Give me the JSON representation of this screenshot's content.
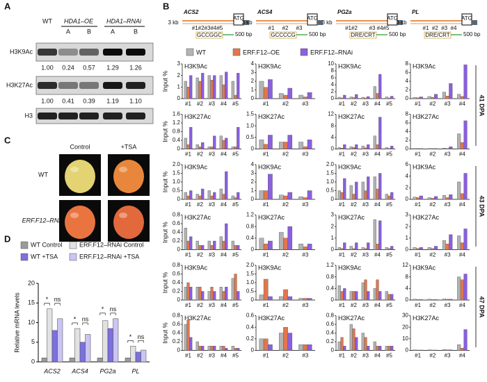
{
  "panel_labels": [
    "A",
    "B",
    "C",
    "D"
  ],
  "panel_a": {
    "columns": [
      "WT",
      "HDA1–OE",
      "HDA1–RNAi"
    ],
    "subcolumns": [
      "A",
      "B",
      "A",
      "B"
    ],
    "rows": [
      {
        "label": "H3K9Ac",
        "values": [
          "1.00",
          "0.24",
          "0.57",
          "1.29",
          "1.26"
        ]
      },
      {
        "label": "H3K27Ac",
        "values": [
          "1.00",
          "0.41",
          "0.39",
          "1.19",
          "1.10"
        ]
      },
      {
        "label": "H3"
      }
    ]
  },
  "panel_c": {
    "columns": [
      "Control",
      "+TSA"
    ],
    "rows": [
      "WT",
      "ERF.F12–RNAi"
    ]
  },
  "panel_b": {
    "genes": [
      {
        "name": "ACS2",
        "scale": "3 kb",
        "start": "ATG",
        "sites": [
          "#1#2#3#4#5"
        ],
        "motif": "GCCGGC",
        "bar": "500 bp"
      },
      {
        "name": "ACS4",
        "scale": "3 kb",
        "start": "ATG",
        "sites": [
          "#1",
          "#2",
          "#3"
        ],
        "motif": "GCCCCG",
        "bar": "500 bp"
      },
      {
        "name": "PG2a",
        "scale": "3 kb",
        "start": "ATG",
        "sites": [
          "#1#2",
          "#3 #4#5"
        ],
        "motif": "DRE/CRT",
        "bar": "500 bp"
      },
      {
        "name": "PL",
        "scale": "3 kb",
        "start": "ATG",
        "sites": [
          "#1",
          "#2",
          "#3",
          "#4"
        ],
        "motif": "DRE/CRT",
        "bar": "500 bp"
      }
    ],
    "legend": [
      {
        "name": "WT",
        "color": "#b3b3b3"
      },
      {
        "name": "ERF.F12–OE",
        "color": "#e3764a"
      },
      {
        "name": "ERF.F12–RNAi",
        "color": "#8a5fe0"
      }
    ],
    "y_label": "Input %",
    "stages": [
      "41 DPA",
      "43 DPA",
      "47 DPA"
    ]
  },
  "chart_data": [
    {
      "type": "grouped-bar",
      "y_label": "Relative mRNA levels",
      "categories": [
        "ACS2",
        "ACS4",
        "PG2a",
        "PL"
      ],
      "series": [
        {
          "name": "WT Control",
          "color": "#9a9a9a",
          "values": [
            1,
            1,
            1,
            1
          ]
        },
        {
          "name": "ERF.F12–RNAi Control",
          "color": "#e2e2e2",
          "values": [
            13.5,
            8.5,
            10.5,
            4
          ]
        },
        {
          "name": "WT +TSA",
          "color": "#7c70e0",
          "values": [
            8,
            5,
            8.5,
            2.5
          ]
        },
        {
          "name": "ERF.F12–RNAi +TSA",
          "color": "#cbc5f3",
          "values": [
            11,
            7,
            11,
            3
          ]
        }
      ],
      "annotations": [
        "*",
        "ns",
        "*",
        "ns",
        "*",
        "ns",
        "*",
        "ns"
      ],
      "ylim": [
        0,
        20
      ],
      "yticks": [
        0,
        5,
        10,
        15,
        20
      ]
    },
    {
      "type": "bar",
      "title": "H3K9Ac",
      "categories": [
        "#1",
        "#2",
        "#3",
        "#4",
        "#5"
      ],
      "ylim": [
        0,
        3
      ],
      "yticks": [
        0,
        1,
        2,
        3
      ],
      "series": [
        {
          "values": [
            1.5,
            1.8,
            2.0,
            2.0,
            1.5
          ]
        },
        {
          "values": [
            1.0,
            1.5,
            1.6,
            1.2,
            0.3
          ]
        },
        {
          "values": [
            2.0,
            2.2,
            2.0,
            2.3,
            2.2
          ]
        }
      ]
    },
    {
      "type": "bar",
      "title": "H3K9Ac",
      "categories": [
        "#1",
        "#2",
        "#3"
      ],
      "ylim": [
        0,
        4
      ],
      "yticks": [
        0,
        1,
        2,
        3,
        4
      ],
      "series": [
        {
          "values": [
            2.0,
            0.6,
            0.4
          ]
        },
        {
          "values": [
            1.3,
            0.4,
            0.2
          ]
        },
        {
          "values": [
            2.2,
            1.2,
            0.7
          ]
        }
      ]
    },
    {
      "type": "bar",
      "title": "H3K9Ac",
      "categories": [
        "#1",
        "#2",
        "#3",
        "#4",
        "#5"
      ],
      "ylim": [
        0,
        10
      ],
      "yticks": [
        0,
        2,
        4,
        6,
        8,
        10
      ],
      "series": [
        {
          "values": [
            0.4,
            0.5,
            0.4,
            3.5,
            0.5
          ]
        },
        {
          "values": [
            0.2,
            0.3,
            0.2,
            1.5,
            0.2
          ]
        },
        {
          "values": [
            1.0,
            1.2,
            0.6,
            7.0,
            0.7
          ]
        }
      ]
    },
    {
      "type": "bar",
      "title": "H3K9Ac",
      "categories": [
        "#1",
        "#2",
        "#3",
        "#4"
      ],
      "ylim": [
        0,
        8
      ],
      "yticks": [
        0,
        2,
        4,
        6,
        8
      ],
      "series": [
        {
          "values": [
            0.3,
            0.5,
            1.5,
            1.0
          ]
        },
        {
          "values": [
            0.2,
            0.3,
            0.6,
            0.5
          ]
        },
        {
          "values": [
            0.4,
            1.0,
            3.5,
            7.8
          ]
        }
      ]
    },
    {
      "type": "bar",
      "title": "H3K27Ac",
      "categories": [
        "#1",
        "#2",
        "#3",
        "#4",
        "#5"
      ],
      "ylim": [
        0,
        1.6
      ],
      "yticks": [
        0,
        0.4,
        0.8,
        1.2,
        1.6
      ],
      "series": [
        {
          "values": [
            0.5,
            0.2,
            0.1,
            0.6,
            0.1
          ]
        },
        {
          "values": [
            0.2,
            0.1,
            0.1,
            0.4,
            0.1
          ]
        },
        {
          "values": [
            1.0,
            0.3,
            0.6,
            0.5,
            1.0
          ]
        }
      ]
    },
    {
      "type": "bar",
      "title": "H3K27Ac",
      "categories": [
        "#1",
        "#2",
        "#3"
      ],
      "ylim": [
        0,
        1.5
      ],
      "yticks": [
        0,
        0.5,
        {
          "value": 1,
          "label": "1.0"
        },
        1.5
      ],
      "series": [
        {
          "values": [
            0.4,
            0.3,
            0.3
          ]
        },
        {
          "values": [
            0.2,
            0.3,
            0.1
          ]
        },
        {
          "values": [
            0.6,
            0.6,
            0.4
          ]
        }
      ]
    },
    {
      "type": "bar",
      "title": "H3K27Ac",
      "categories": [
        "#1",
        "#2",
        "#3",
        "#4",
        "#5"
      ],
      "ylim": [
        0,
        12
      ],
      "yticks": [
        0,
        4,
        8,
        12
      ],
      "series": [
        {
          "values": [
            0.5,
            0.8,
            1.0,
            4.5,
            0.5
          ]
        },
        {
          "values": [
            0.3,
            0.5,
            0.4,
            1.5,
            0.2
          ]
        },
        {
          "values": [
            1.5,
            1.5,
            1.5,
            11,
            1.0
          ]
        }
      ]
    },
    {
      "type": "bar",
      "title": "H3K27Ac",
      "categories": [
        "#1",
        "#2",
        "#3",
        "#4"
      ],
      "ylim": [
        0,
        8
      ],
      "yticks": [
        0,
        2,
        4,
        6,
        8
      ],
      "series": [
        {
          "values": [
            0.1,
            0.1,
            0.2,
            3.5
          ]
        },
        {
          "values": [
            0.1,
            0.1,
            0.1,
            1.5
          ]
        },
        {
          "values": [
            0.1,
            0.1,
            0.5,
            6.5
          ]
        }
      ]
    },
    {
      "type": "bar",
      "title": "H3K9Ac",
      "categories": [
        "#1",
        "#2",
        "#3",
        "#4",
        "#5"
      ],
      "ylim": [
        0,
        2
      ],
      "yticks": [
        0,
        0.5,
        {
          "value": 1,
          "label": "1.0"
        },
        1.5,
        {
          "value": 2,
          "label": "2.0"
        }
      ],
      "series": [
        {
          "values": [
            0.4,
            0.3,
            0.5,
            0.6,
            0.2
          ]
        },
        {
          "values": [
            0.2,
            0.2,
            0.2,
            0.3,
            0.1
          ]
        },
        {
          "values": [
            0.5,
            0.6,
            0.4,
            1.6,
            0.4
          ]
        }
      ]
    },
    {
      "type": "bar",
      "title": "H3K9Ac",
      "categories": [
        "#1",
        "#2",
        "#3"
      ],
      "ylim": [
        0,
        4
      ],
      "yticks": [
        0,
        1,
        2,
        3,
        4
      ],
      "series": [
        {
          "values": [
            1.0,
            0.5,
            0.3
          ]
        },
        {
          "values": [
            1.0,
            0.4,
            0.2
          ]
        },
        {
          "values": [
            2.9,
            0.8,
            1.0
          ]
        }
      ]
    },
    {
      "type": "bar",
      "title": "H3K9Ac",
      "categories": [
        "#1",
        "#2",
        "#3",
        "#4",
        "#5"
      ],
      "ylim": [
        0,
        2
      ],
      "yticks": [
        0,
        0.5,
        {
          "value": 1,
          "label": "1.0"
        },
        1.5,
        {
          "value": 2,
          "label": "2.0"
        }
      ],
      "series": [
        {
          "values": [
            0.5,
            0.8,
            1.0,
            1.3,
            0.3
          ]
        },
        {
          "values": [
            0.4,
            0.3,
            0.5,
            0.6,
            0.2
          ]
        },
        {
          "values": [
            1.2,
            1.0,
            1.3,
            1.5,
            0.4
          ]
        }
      ]
    },
    {
      "type": "bar",
      "title": "H3K9Ac",
      "categories": [
        "#1",
        "#2",
        "#3",
        "#4"
      ],
      "ylim": [
        0,
        6
      ],
      "yticks": [
        0,
        2,
        4,
        6
      ],
      "series": [
        {
          "values": [
            0.4,
            0.3,
            0.7,
            3.0
          ]
        },
        {
          "values": [
            0.3,
            0.2,
            0.3,
            1.0
          ]
        },
        {
          "values": [
            0.6,
            0.5,
            0.8,
            4.5
          ]
        }
      ]
    },
    {
      "type": "bar",
      "title": "H3K27Ac",
      "categories": [
        "#1",
        "#2",
        "#3",
        "#4",
        "#5"
      ],
      "ylim": [
        0,
        0.8
      ],
      "yticks": [
        0,
        0.2,
        0.4,
        0.6,
        0.8
      ],
      "series": [
        {
          "values": [
            0.5,
            0.2,
            0.2,
            0.3,
            0.2
          ]
        },
        {
          "values": [
            0.2,
            0.1,
            0.1,
            0.2,
            0.1
          ]
        },
        {
          "values": [
            0.3,
            0.1,
            0.2,
            0.6,
            0.1
          ]
        }
      ]
    },
    {
      "type": "bar",
      "title": "H3K27Ac",
      "categories": [
        "#1",
        "#2",
        "#3"
      ],
      "ylim": [
        0,
        1.2
      ],
      "yticks": [
        0,
        0.4,
        0.8,
        1.2
      ],
      "series": [
        {
          "values": [
            0.4,
            0.6,
            0.2
          ]
        },
        {
          "values": [
            0.2,
            0.4,
            0.1
          ]
        },
        {
          "values": [
            0.3,
            0.8,
            0.2
          ]
        }
      ]
    },
    {
      "type": "bar",
      "title": "H3K27Ac",
      "categories": [
        "#1",
        "#2",
        "#3",
        "#4",
        "#5"
      ],
      "ylim": [
        0,
        3
      ],
      "yticks": [
        0,
        1,
        2,
        3
      ],
      "series": [
        {
          "values": [
            0.2,
            0.3,
            0.2,
            2.6,
            0.2
          ]
        },
        {
          "values": [
            0.1,
            0.1,
            0.1,
            0.5,
            0.1
          ]
        },
        {
          "values": [
            0.6,
            0.6,
            0.6,
            2.5,
            0.3
          ]
        }
      ]
    },
    {
      "type": "bar",
      "title": "H3K27Ac",
      "categories": [
        "#1",
        "#2",
        "#3",
        "#4"
      ],
      "ylim": [
        0,
        3
      ],
      "yticks": [
        0,
        1,
        2,
        3
      ],
      "series": [
        {
          "values": [
            0.2,
            0.2,
            0.8,
            1.2
          ]
        },
        {
          "values": [
            0.1,
            0.1,
            0.5,
            0.6
          ]
        },
        {
          "values": [
            0.2,
            0.3,
            1.3,
            1.8
          ]
        }
      ]
    },
    {
      "type": "bar",
      "title": "H3K9Ac",
      "categories": [
        "#1",
        "#2",
        "#3",
        "#4",
        "#5"
      ],
      "ylim": [
        0,
        0.8
      ],
      "yticks": [
        0,
        0.2,
        0.4,
        0.6,
        0.8
      ],
      "series": [
        {
          "values": [
            0.3,
            0.3,
            0.2,
            0.3,
            0.5
          ]
        },
        {
          "values": [
            0.4,
            0.3,
            0.3,
            0.2,
            0.6
          ]
        },
        {
          "values": [
            0.3,
            0.2,
            0.2,
            0.3,
            0.2
          ]
        }
      ]
    },
    {
      "type": "bar",
      "title": "H3K9Ac",
      "categories": [
        "#1",
        "#2",
        "#3"
      ],
      "ylim": [
        0,
        2
      ],
      "yticks": [
        0,
        0.5,
        {
          "value": 1,
          "label": "1.0"
        },
        1.5,
        {
          "value": 2,
          "label": "2.0"
        }
      ],
      "series": [
        {
          "values": [
            0.3,
            0.2,
            0.1
          ]
        },
        {
          "values": [
            1.2,
            0.6,
            0.1
          ]
        },
        {
          "values": [
            0.2,
            0.2,
            0.1
          ]
        }
      ]
    },
    {
      "type": "bar",
      "title": "H3K9Ac",
      "categories": [
        "#1",
        "#2",
        "#3",
        "#4",
        "#5"
      ],
      "ylim": [
        0,
        1.2
      ],
      "yticks": [
        0,
        0.4,
        0.8,
        1.2
      ],
      "series": [
        {
          "values": [
            0.5,
            0.3,
            0.6,
            0.4,
            0.3
          ]
        },
        {
          "values": [
            0.3,
            0.3,
            0.7,
            0.7,
            0.2
          ]
        },
        {
          "values": [
            0.4,
            0.3,
            0.3,
            0.3,
            0.2
          ]
        }
      ]
    },
    {
      "type": "bar",
      "title": "H3K9Ac",
      "categories": [
        "#1",
        "#2",
        "#3",
        "#4"
      ],
      "ylim": [
        0,
        12
      ],
      "yticks": [
        0,
        4,
        8,
        12
      ],
      "series": [
        {
          "values": [
            0.3,
            0.3,
            0.4,
            8
          ]
        },
        {
          "values": [
            0.2,
            0.2,
            0.3,
            7
          ]
        },
        {
          "values": [
            0.2,
            0.2,
            0.3,
            9
          ]
        }
      ]
    },
    {
      "type": "bar",
      "title": "H3K27Ac",
      "categories": [
        "#1",
        "#2",
        "#3",
        "#4",
        "#5"
      ],
      "ylim": [
        0,
        0.8
      ],
      "yticks": [
        0,
        0.2,
        0.4,
        0.6,
        0.8
      ],
      "series": [
        {
          "values": [
            0.6,
            0.2,
            0.1,
            0.1,
            0.1
          ]
        },
        {
          "values": [
            0.7,
            0.1,
            0.1,
            0.1,
            0.05
          ]
        },
        {
          "values": [
            0.3,
            0.1,
            0.1,
            0.05,
            0.05
          ]
        }
      ]
    },
    {
      "type": "bar",
      "title": "H3K27Ac",
      "categories": [
        "#1",
        "#2",
        "#3"
      ],
      "ylim": [
        0,
        0.6
      ],
      "yticks": [
        0,
        0.2,
        0.4,
        0.6
      ],
      "series": [
        {
          "values": [
            0.2,
            0.3,
            0.1
          ]
        },
        {
          "values": [
            0.2,
            0.4,
            0.1
          ]
        },
        {
          "values": [
            0.1,
            0.3,
            0.1
          ]
        }
      ]
    },
    {
      "type": "bar",
      "title": "H3K27Ac",
      "categories": [
        "#1",
        "#2",
        "#3",
        "#4",
        "#5"
      ],
      "ylim": [
        0,
        0.8
      ],
      "yticks": [
        0,
        0.2,
        0.4,
        0.6,
        0.8
      ],
      "series": [
        {
          "values": [
            0.2,
            0.6,
            0.4,
            0.2,
            0.1
          ]
        },
        {
          "values": [
            0.3,
            0.5,
            0.3,
            0.1,
            0.1
          ]
        },
        {
          "values": [
            0.1,
            0.3,
            0.1,
            0.1,
            0.1
          ]
        }
      ]
    },
    {
      "type": "bar",
      "title": "H3K27Ac",
      "categories": [
        "#1",
        "#2",
        "#3",
        "#4"
      ],
      "ylim": [
        0,
        30
      ],
      "yticks": [
        0,
        10,
        20,
        30
      ],
      "series": [
        {
          "values": [
            0.5,
            0.5,
            0.8,
            5
          ]
        },
        {
          "values": [
            0.3,
            0.3,
            0.5,
            2
          ]
        },
        {
          "values": [
            0.3,
            0.3,
            0.5,
            18
          ]
        }
      ]
    }
  ]
}
